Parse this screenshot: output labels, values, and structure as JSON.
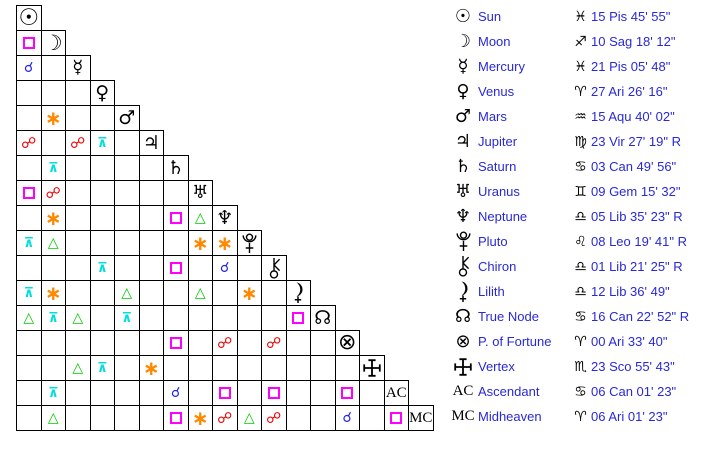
{
  "colors": {
    "conjunction": "#2222ee",
    "opposition": "#ee0000",
    "square": "#ff00ff",
    "trine": "#00cc00",
    "sextile": "#ff8800",
    "quincunx": "#00dede",
    "table_text": "#2929d6",
    "glyph": "#000000"
  },
  "chart_data": {
    "type": "table",
    "title": "Astrological aspect grid with planetary positions",
    "planets": [
      {
        "id": "sun",
        "name": "Sun",
        "sign": "pisces",
        "position": "15 Pis 45' 55\""
      },
      {
        "id": "moon",
        "name": "Moon",
        "sign": "sagittarius",
        "position": "10 Sag 18' 12\""
      },
      {
        "id": "mercury",
        "name": "Mercury",
        "sign": "pisces",
        "position": "21 Pis 05' 48\""
      },
      {
        "id": "venus",
        "name": "Venus",
        "sign": "aries",
        "position": "27 Ari 26' 16\""
      },
      {
        "id": "mars",
        "name": "Mars",
        "sign": "aquarius",
        "position": "15 Aqu 40' 02\""
      },
      {
        "id": "jupiter",
        "name": "Jupiter",
        "sign": "virgo",
        "position": "23 Vir 27' 19\" R"
      },
      {
        "id": "saturn",
        "name": "Saturn",
        "sign": "cancer",
        "position": "03 Can 49' 56\""
      },
      {
        "id": "uranus",
        "name": "Uranus",
        "sign": "gemini",
        "position": "09 Gem 15' 32\""
      },
      {
        "id": "neptune",
        "name": "Neptune",
        "sign": "libra",
        "position": "05 Lib 35' 23\" R"
      },
      {
        "id": "pluto",
        "name": "Pluto",
        "sign": "leo",
        "position": "08 Leo 19' 41\" R"
      },
      {
        "id": "chiron",
        "name": "Chiron",
        "sign": "libra",
        "position": "01 Lib 21' 25\" R"
      },
      {
        "id": "lilith",
        "name": "Lilith",
        "sign": "libra",
        "position": "12 Lib 36' 49\""
      },
      {
        "id": "truenode",
        "name": "True Node",
        "sign": "cancer",
        "position": "16 Can 22' 52\" R"
      },
      {
        "id": "fortune",
        "name": "P. of Fortune",
        "sign": "aries",
        "position": "00 Ari 33' 40\""
      },
      {
        "id": "vertex",
        "name": "Vertex",
        "sign": "scorpio",
        "position": "23 Sco 55' 43\""
      },
      {
        "id": "ac",
        "name": "Ascendant",
        "sign": "cancer",
        "position": "06 Can 01' 23\""
      },
      {
        "id": "mc",
        "name": "Midheaven",
        "sign": "aries",
        "position": "06 Ari 01' 23\""
      }
    ],
    "aspects": [
      {
        "row": "moon",
        "col": "sun",
        "type": "square"
      },
      {
        "row": "mercury",
        "col": "sun",
        "type": "conjunction"
      },
      {
        "row": "mars",
        "col": "moon",
        "type": "sextile"
      },
      {
        "row": "jupiter",
        "col": "sun",
        "type": "opposition"
      },
      {
        "row": "jupiter",
        "col": "mercury",
        "type": "opposition"
      },
      {
        "row": "jupiter",
        "col": "venus",
        "type": "quincunx"
      },
      {
        "row": "saturn",
        "col": "moon",
        "type": "quincunx"
      },
      {
        "row": "uranus",
        "col": "sun",
        "type": "square"
      },
      {
        "row": "uranus",
        "col": "moon",
        "type": "opposition"
      },
      {
        "row": "neptune",
        "col": "moon",
        "type": "sextile"
      },
      {
        "row": "neptune",
        "col": "saturn",
        "type": "square"
      },
      {
        "row": "neptune",
        "col": "uranus",
        "type": "trine"
      },
      {
        "row": "pluto",
        "col": "sun",
        "type": "quincunx"
      },
      {
        "row": "pluto",
        "col": "moon",
        "type": "trine"
      },
      {
        "row": "pluto",
        "col": "uranus",
        "type": "sextile"
      },
      {
        "row": "pluto",
        "col": "neptune",
        "type": "sextile"
      },
      {
        "row": "chiron",
        "col": "venus",
        "type": "quincunx"
      },
      {
        "row": "chiron",
        "col": "saturn",
        "type": "square"
      },
      {
        "row": "chiron",
        "col": "neptune",
        "type": "conjunction"
      },
      {
        "row": "lilith",
        "col": "sun",
        "type": "quincunx"
      },
      {
        "row": "lilith",
        "col": "moon",
        "type": "sextile"
      },
      {
        "row": "lilith",
        "col": "mars",
        "type": "trine"
      },
      {
        "row": "lilith",
        "col": "uranus",
        "type": "trine"
      },
      {
        "row": "lilith",
        "col": "pluto",
        "type": "sextile"
      },
      {
        "row": "truenode",
        "col": "sun",
        "type": "trine"
      },
      {
        "row": "truenode",
        "col": "moon",
        "type": "quincunx"
      },
      {
        "row": "truenode",
        "col": "mercury",
        "type": "trine"
      },
      {
        "row": "truenode",
        "col": "mars",
        "type": "quincunx"
      },
      {
        "row": "truenode",
        "col": "lilith",
        "type": "square"
      },
      {
        "row": "fortune",
        "col": "saturn",
        "type": "square"
      },
      {
        "row": "fortune",
        "col": "neptune",
        "type": "opposition"
      },
      {
        "row": "fortune",
        "col": "chiron",
        "type": "opposition"
      },
      {
        "row": "vertex",
        "col": "mercury",
        "type": "trine"
      },
      {
        "row": "vertex",
        "col": "venus",
        "type": "quincunx"
      },
      {
        "row": "vertex",
        "col": "jupiter",
        "type": "sextile"
      },
      {
        "row": "ac",
        "col": "moon",
        "type": "quincunx"
      },
      {
        "row": "ac",
        "col": "saturn",
        "type": "conjunction"
      },
      {
        "row": "ac",
        "col": "neptune",
        "type": "square"
      },
      {
        "row": "ac",
        "col": "chiron",
        "type": "square"
      },
      {
        "row": "ac",
        "col": "fortune",
        "type": "square"
      },
      {
        "row": "mc",
        "col": "moon",
        "type": "trine"
      },
      {
        "row": "mc",
        "col": "saturn",
        "type": "square"
      },
      {
        "row": "mc",
        "col": "uranus",
        "type": "sextile"
      },
      {
        "row": "mc",
        "col": "neptune",
        "type": "opposition"
      },
      {
        "row": "mc",
        "col": "pluto",
        "type": "trine"
      },
      {
        "row": "mc",
        "col": "chiron",
        "type": "opposition"
      },
      {
        "row": "mc",
        "col": "fortune",
        "type": "conjunction"
      },
      {
        "row": "mc",
        "col": "ac",
        "type": "square"
      }
    ]
  }
}
